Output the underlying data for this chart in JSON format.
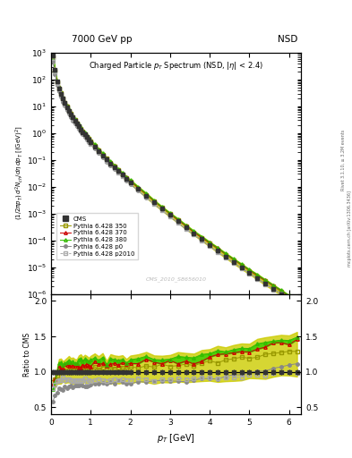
{
  "title_top": "7000 GeV pp",
  "title_right": "NSD",
  "plot_title": "Charged Particle p_{T} Spectrum (NSD, |\\eta| < 2.4)",
  "ylabel_main": "(1/2\\pi p_{T}) d^{2}N_{ch}/d\\eta, dp_{T} [(GeV)^{2}]",
  "ylabel_ratio": "Ratio to CMS",
  "xlabel": "p_{T} [GeV]",
  "watermark": "CMS_2010_S8656010",
  "xlim": [
    0,
    6.3
  ],
  "ylim_main": [
    1e-06,
    1000
  ],
  "ylim_ratio": [
    0.4,
    2.1
  ],
  "yticks_ratio": [
    0.5,
    1.0,
    1.5,
    2.0
  ],
  "colors": {
    "cms": "#333333",
    "p350": "#999900",
    "p370": "#cc0000",
    "p380": "#33bb00",
    "p0": "#888888",
    "p2010": "#aaaaaa"
  },
  "band_color_green": "#33cc00",
  "band_color_yellow": "#cccc00",
  "legend_entries": [
    "CMS",
    "Pythia 6.428 350",
    "Pythia 6.428 370",
    "Pythia 6.428 380",
    "Pythia 6.428 p0",
    "Pythia 6.428 p2010"
  ]
}
